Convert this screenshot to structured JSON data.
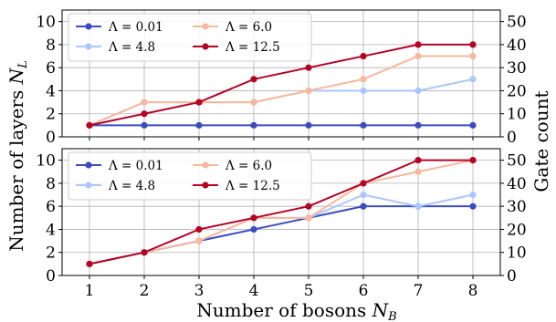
{
  "chart_data": [
    {
      "type": "line",
      "x": [
        1,
        2,
        3,
        4,
        5,
        6,
        7,
        8
      ],
      "series": [
        {
          "name": "Λ = 0.01",
          "color": "#3b4cc0",
          "values": [
            1,
            1,
            1,
            1,
            1,
            1,
            1,
            1
          ]
        },
        {
          "name": "Λ = 4.8",
          "color": "#aac7fd",
          "values": [
            1,
            3,
            3,
            3,
            4,
            4,
            4,
            5
          ]
        },
        {
          "name": "Λ = 6.0",
          "color": "#f7b89c",
          "values": [
            1,
            3,
            3,
            3,
            4,
            5,
            7,
            7
          ]
        },
        {
          "name": "Λ = 12.5",
          "color": "#b40426",
          "values": [
            1,
            2,
            3,
            5,
            6,
            7,
            8,
            8
          ]
        }
      ],
      "ylim": [
        0,
        11
      ],
      "yticks": [
        0,
        2,
        4,
        6,
        8,
        10
      ],
      "y2lim": [
        0,
        55
      ],
      "y2ticks": [
        0,
        10,
        20,
        30,
        40,
        50
      ],
      "xlim": [
        0.5,
        8.5
      ],
      "grid": true,
      "legend": "top-left",
      "legend_columns": 2
    },
    {
      "type": "line",
      "x": [
        1,
        2,
        3,
        4,
        5,
        6,
        7,
        8
      ],
      "series": [
        {
          "name": "Λ = 0.01",
          "color": "#3b4cc0",
          "values": [
            1,
            2,
            3,
            4,
            5,
            6,
            6,
            6
          ]
        },
        {
          "name": "Λ = 4.8",
          "color": "#aac7fd",
          "values": [
            1,
            2,
            3,
            5,
            5,
            7,
            6,
            7
          ]
        },
        {
          "name": "Λ = 6.0",
          "color": "#f7b89c",
          "values": [
            1,
            2,
            3,
            5,
            5,
            8,
            9,
            10
          ]
        },
        {
          "name": "Λ = 12.5",
          "color": "#b40426",
          "values": [
            1,
            2,
            4,
            5,
            6,
            8,
            10,
            10
          ]
        }
      ],
      "ylim": [
        0,
        11
      ],
      "yticks": [
        0,
        2,
        4,
        6,
        8,
        10
      ],
      "y2lim": [
        0,
        55
      ],
      "y2ticks": [
        0,
        10,
        20,
        30,
        40,
        50
      ],
      "xlim": [
        0.5,
        8.5
      ],
      "grid": true,
      "legend": "top-left",
      "legend_columns": 2
    }
  ],
  "xticks": [
    1,
    2,
    3,
    4,
    5,
    6,
    7,
    8
  ],
  "labels": {
    "xlabel_main": "Number of bosons ",
    "xlabel_sub": "B",
    "ylabel_main": "Number of layers ",
    "ylabel_sub": "L",
    "y2label": "Gate count"
  }
}
